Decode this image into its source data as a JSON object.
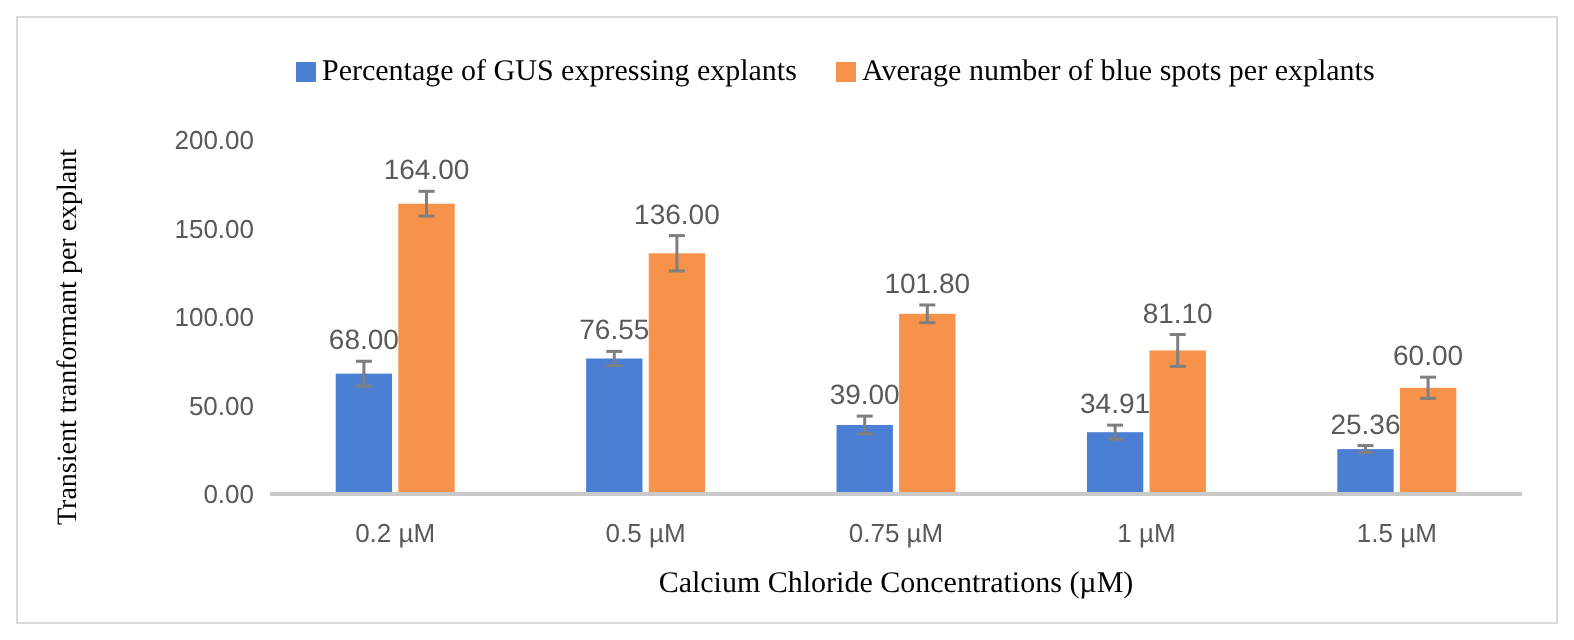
{
  "chart_data": {
    "type": "bar",
    "xlabel": "Calcium Chloride Concentrations (µM)",
    "ylabel": "Transient tranformant per explant",
    "categories": [
      "0.2 µM",
      "0.5 µM",
      "0.75 µM",
      "1 µM",
      "1.5 µM"
    ],
    "series": [
      {
        "name": "Percentage of GUS expressing explants",
        "color": "#4a7fd4",
        "values": [
          68,
          76.55,
          39,
          34.91,
          25.36
        ],
        "errors": [
          7,
          4,
          5,
          4,
          2
        ],
        "value_labels": [
          "68.00",
          "76.55",
          "39.00",
          "34.91",
          "25.36"
        ]
      },
      {
        "name": "Average number of blue spots per explants",
        "color": "#f6924a",
        "values": [
          164,
          136,
          101.8,
          81.1,
          60
        ],
        "errors": [
          7,
          10,
          5,
          9,
          6
        ],
        "value_labels": [
          "164.00",
          "136.00",
          "101.80",
          "81.10",
          "60.00"
        ]
      }
    ],
    "ylim": [
      0,
      200
    ],
    "yticks": [
      {
        "value": 0,
        "label": "0.00"
      },
      {
        "value": 50,
        "label": "50.00"
      },
      {
        "value": 100,
        "label": "100.00"
      },
      {
        "value": 150,
        "label": "150.00"
      },
      {
        "value": 200,
        "label": "200.00"
      }
    ],
    "grid": false,
    "legend": "top"
  }
}
